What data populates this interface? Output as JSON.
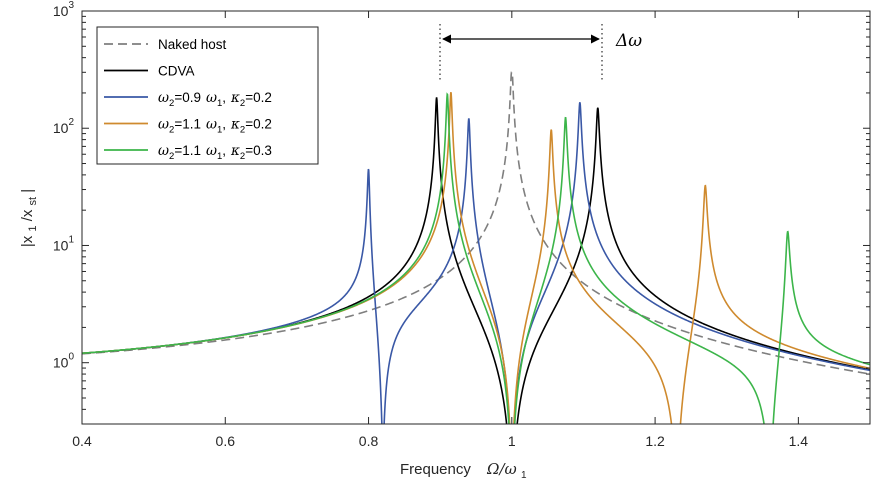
{
  "chart_data": {
    "type": "line",
    "xlabel": "Frequency",
    "xlabel_math": "Ω/ω",
    "xlabel_math_sub": "1",
    "ylabel_parts": {
      "open": "|x",
      "sub1": "1",
      "slash": "/x",
      "sub2": "st",
      "close": "|"
    },
    "yscale": "log",
    "xlim": [
      0.4,
      1.5
    ],
    "ylim": [
      0.3,
      1000
    ],
    "x_ticks": [
      "0.4",
      "0.6",
      "0.8",
      "1",
      "1.2",
      "1.4"
    ],
    "x_tick_values": [
      0.4,
      0.6,
      0.8,
      1.0,
      1.2,
      1.4
    ],
    "y_ticks": [
      {
        "base": "10",
        "exp": "0",
        "value": 1
      },
      {
        "base": "10",
        "exp": "1",
        "value": 10
      },
      {
        "base": "10",
        "exp": "2",
        "value": 100
      },
      {
        "base": "10",
        "exp": "3",
        "value": 1000
      }
    ],
    "grid": false,
    "legend_position": "top-left",
    "series": [
      {
        "name": "Naked host",
        "color": "#7f7f7f",
        "style": "dashed",
        "resonances": [
          1.0
        ],
        "antiresonances": []
      },
      {
        "name": "CDVA",
        "color": "#000000",
        "style": "solid",
        "resonances": [
          0.895,
          1.12
        ],
        "antiresonances": [
          1.0
        ]
      },
      {
        "name": "ω2=0.9 ω1, κ2=0.2",
        "color": "#3a58a6",
        "style": "solid",
        "resonances": [
          0.8,
          0.94,
          1.095
        ],
        "antiresonances": [
          0.82,
          1.0
        ]
      },
      {
        "name": "ω2=1.1 ω1, κ2=0.2",
        "color": "#cf8a2e",
        "style": "solid",
        "resonances": [
          0.915,
          1.055,
          1.27
        ],
        "antiresonances": [
          1.0,
          1.23
        ]
      },
      {
        "name": "ω2=1.1 ω1, κ2=0.3",
        "color": "#3cb54a",
        "style": "solid",
        "resonances": [
          0.91,
          1.075,
          1.385
        ],
        "antiresonances": [
          1.0,
          1.36
        ]
      }
    ],
    "legend_labels": [
      {
        "text": "Naked host"
      },
      {
        "text": "CDVA"
      },
      {
        "w": "ω",
        "ws": "2",
        "eq": "=0.9",
        "w1": "ω",
        "w1s": "1",
        "k": "κ",
        "ks": "2",
        "kv": "=0.2"
      },
      {
        "w": "ω",
        "ws": "2",
        "eq": "=1.1",
        "w1": "ω",
        "w1s": "1",
        "k": "κ",
        "ks": "2",
        "kv": "=0.2"
      },
      {
        "w": "ω",
        "ws": "2",
        "eq": "=1.1",
        "w1": "ω",
        "w1s": "1",
        "k": "κ",
        "ks": "2",
        "kv": "=0.3"
      }
    ],
    "annotation": {
      "text": "Δω",
      "x_from": 0.895,
      "x_to": 1.12
    }
  }
}
